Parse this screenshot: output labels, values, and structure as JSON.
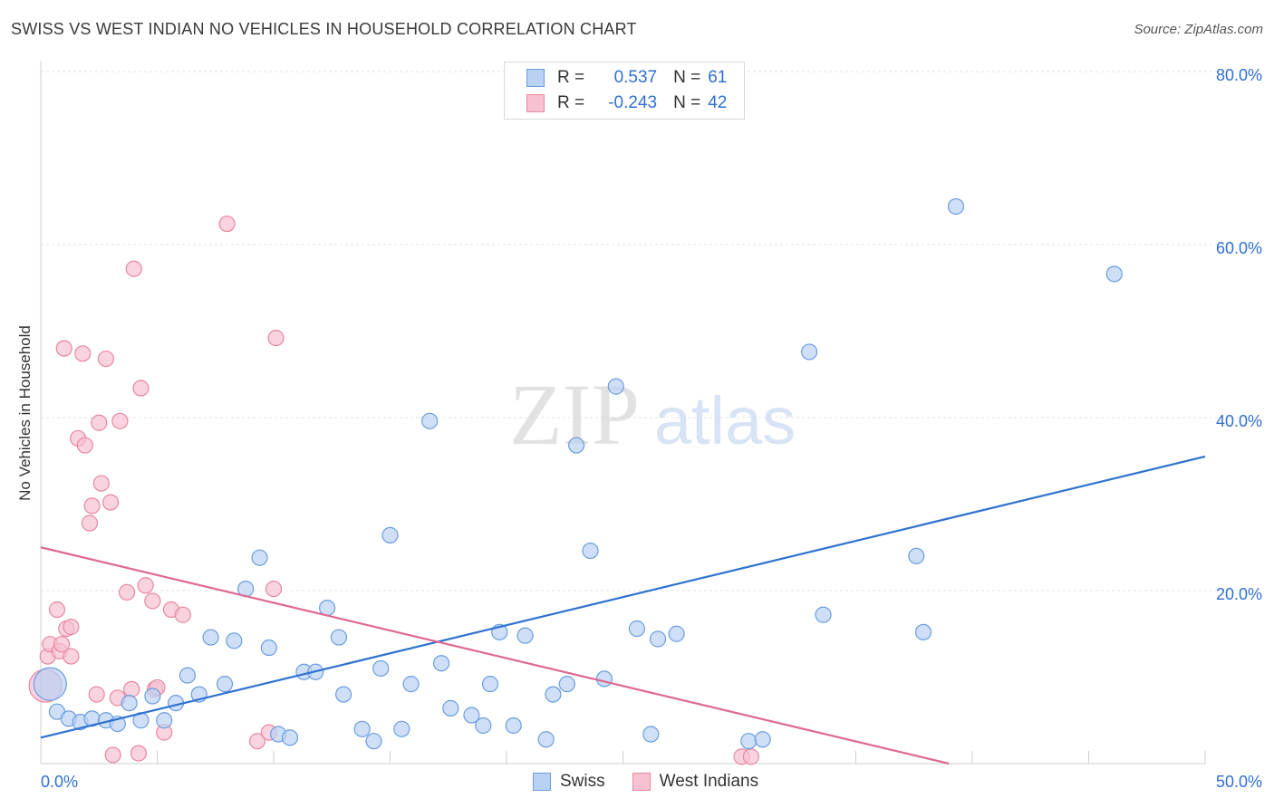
{
  "title": "SWISS VS WEST INDIAN NO VEHICLES IN HOUSEHOLD CORRELATION CHART",
  "source": "Source: ZipAtlas.com",
  "watermark": {
    "zip": "ZIP",
    "atlas": "atlas"
  },
  "legend": {
    "swiss": {
      "r_label": "R =",
      "r_value": "0.537",
      "n_label": "N =",
      "n_value": "61"
    },
    "west_indians": {
      "r_label": "R =",
      "r_value": "-0.243",
      "n_label": "N =",
      "n_value": "42"
    }
  },
  "colors": {
    "swiss_fill": "#b9d1f3",
    "swiss_stroke": "#6b9ee0",
    "swiss_line": "#2f72d0",
    "wi_fill": "#f7c1d1",
    "wi_stroke": "#e8889f",
    "wi_line": "#e06890",
    "value_text": "#3070d0",
    "grid": "#e3e3e3"
  },
  "chart_data": {
    "type": "scatter",
    "title": "SWISS VS WEST INDIAN NO VEHICLES IN HOUSEHOLD CORRELATION CHART",
    "xlabel": "",
    "ylabel": "No Vehicles in Household",
    "xlim": [
      0,
      50
    ],
    "ylim": [
      0,
      80
    ],
    "x_tick_labels": [
      "0.0%",
      "50.0%"
    ],
    "y_tick_labels": [
      "20.0%",
      "40.0%",
      "60.0%",
      "80.0%"
    ],
    "y_ticks": [
      20,
      40,
      60,
      80
    ],
    "series": [
      {
        "name": "Swiss",
        "r": 0.537,
        "n": 61,
        "trend": {
          "x": [
            0,
            50
          ],
          "y": [
            3.0,
            35.5
          ]
        },
        "points": [
          [
            0.4,
            9.2,
            "big"
          ],
          [
            0.7,
            6.0
          ],
          [
            1.2,
            5.2
          ],
          [
            1.7,
            4.8
          ],
          [
            2.2,
            5.2
          ],
          [
            2.8,
            5.0
          ],
          [
            3.3,
            4.6
          ],
          [
            3.8,
            7.0
          ],
          [
            4.3,
            5.0
          ],
          [
            4.8,
            7.8
          ],
          [
            5.3,
            5.0
          ],
          [
            5.8,
            7.0
          ],
          [
            6.3,
            10.2
          ],
          [
            6.8,
            8.0
          ],
          [
            7.3,
            14.6
          ],
          [
            7.9,
            9.2
          ],
          [
            8.3,
            14.2
          ],
          [
            8.8,
            20.2
          ],
          [
            9.4,
            23.8
          ],
          [
            9.8,
            13.4
          ],
          [
            10.2,
            3.4
          ],
          [
            10.7,
            3.0
          ],
          [
            11.3,
            10.6
          ],
          [
            11.8,
            10.6
          ],
          [
            12.3,
            18.0
          ],
          [
            12.8,
            14.6
          ],
          [
            13.0,
            8.0
          ],
          [
            13.8,
            4.0
          ],
          [
            14.3,
            2.6
          ],
          [
            14.6,
            11.0
          ],
          [
            15.0,
            26.4
          ],
          [
            15.5,
            4.0
          ],
          [
            15.9,
            9.2
          ],
          [
            16.7,
            39.6
          ],
          [
            17.2,
            11.6
          ],
          [
            17.6,
            6.4
          ],
          [
            18.5,
            5.6
          ],
          [
            19.0,
            4.4
          ],
          [
            19.3,
            9.2
          ],
          [
            19.7,
            15.2
          ],
          [
            20.3,
            4.4
          ],
          [
            20.8,
            14.8
          ],
          [
            21.7,
            2.8
          ],
          [
            22.0,
            8.0
          ],
          [
            22.6,
            9.2
          ],
          [
            23.0,
            36.8
          ],
          [
            23.6,
            24.6
          ],
          [
            24.2,
            9.8
          ],
          [
            24.7,
            43.6
          ],
          [
            25.6,
            15.6
          ],
          [
            26.2,
            3.4
          ],
          [
            26.5,
            14.4
          ],
          [
            27.3,
            15.0
          ],
          [
            30.4,
            2.6
          ],
          [
            31.0,
            2.8
          ],
          [
            33.0,
            47.6
          ],
          [
            33.6,
            17.2
          ],
          [
            37.6,
            24.0
          ],
          [
            37.9,
            15.2
          ],
          [
            39.3,
            64.4
          ],
          [
            46.1,
            56.6
          ]
        ]
      },
      {
        "name": "West Indians",
        "r": -0.243,
        "n": 42,
        "trend": {
          "x": [
            0,
            39
          ],
          "y": [
            25.0,
            0
          ]
        },
        "points": [
          [
            0.2,
            9.0,
            "big"
          ],
          [
            0.3,
            12.4
          ],
          [
            0.4,
            13.8
          ],
          [
            0.7,
            17.8
          ],
          [
            0.8,
            13.0
          ],
          [
            0.9,
            13.8
          ],
          [
            1.0,
            48.0
          ],
          [
            1.1,
            15.6
          ],
          [
            1.3,
            15.8
          ],
          [
            1.3,
            12.4
          ],
          [
            1.6,
            37.6
          ],
          [
            1.8,
            47.4
          ],
          [
            1.9,
            36.8
          ],
          [
            2.1,
            27.8
          ],
          [
            2.2,
            29.8
          ],
          [
            2.4,
            8.0
          ],
          [
            2.5,
            39.4
          ],
          [
            2.6,
            32.4
          ],
          [
            2.8,
            46.8
          ],
          [
            3.0,
            30.2
          ],
          [
            3.1,
            1.0
          ],
          [
            3.3,
            7.6
          ],
          [
            3.4,
            39.6
          ],
          [
            3.7,
            19.8
          ],
          [
            3.9,
            8.6
          ],
          [
            4.0,
            57.2
          ],
          [
            4.2,
            1.2
          ],
          [
            4.3,
            43.4
          ],
          [
            4.5,
            20.6
          ],
          [
            4.8,
            18.8
          ],
          [
            4.9,
            8.6
          ],
          [
            5.0,
            8.8
          ],
          [
            5.3,
            3.6
          ],
          [
            5.6,
            17.8
          ],
          [
            6.1,
            17.2
          ],
          [
            8.0,
            62.4
          ],
          [
            9.3,
            2.6
          ],
          [
            9.8,
            3.6
          ],
          [
            10.0,
            20.2
          ],
          [
            10.1,
            49.2
          ],
          [
            30.1,
            0.8
          ],
          [
            30.5,
            0.8
          ]
        ]
      }
    ]
  }
}
